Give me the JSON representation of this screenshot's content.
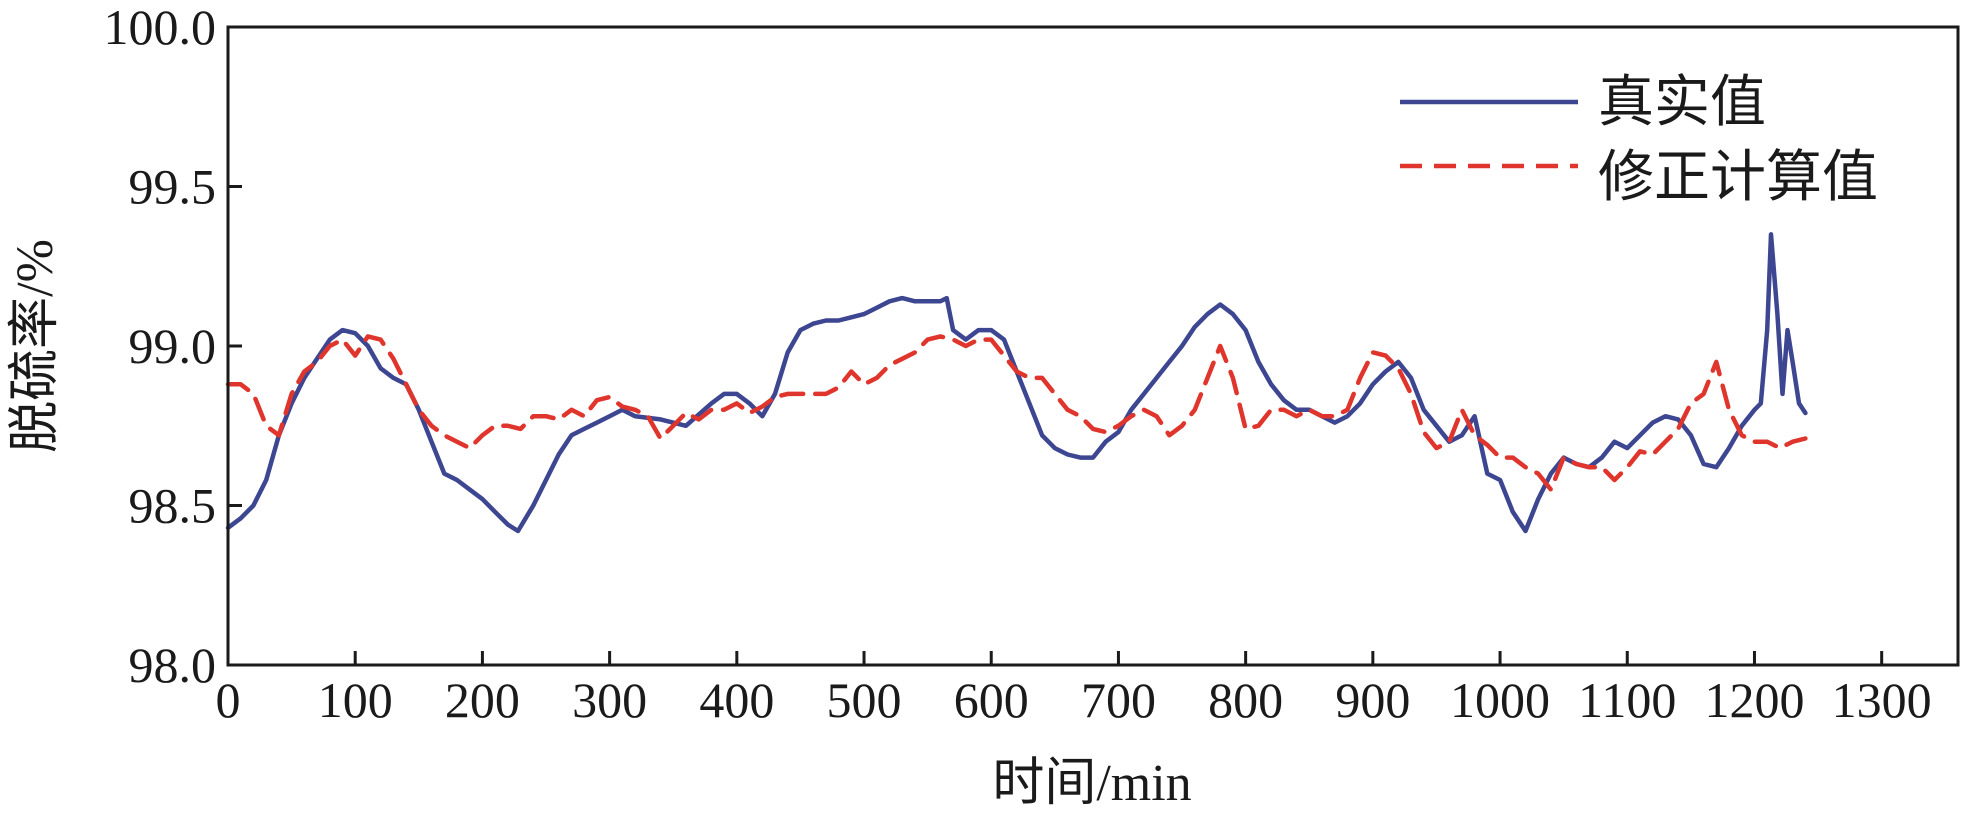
{
  "chart_data": {
    "type": "line",
    "title": "",
    "xlabel": "时间/min",
    "ylabel": "脱硫率/%",
    "xlim": [
      0,
      1360
    ],
    "ylim": [
      98.0,
      100.0
    ],
    "xticks": [
      0,
      100,
      200,
      300,
      400,
      500,
      600,
      700,
      800,
      900,
      1000,
      1100,
      1200,
      1300
    ],
    "xtick_labels": [
      "0",
      "100",
      "200",
      "300",
      "400",
      "500",
      "600",
      "700",
      "800",
      "900",
      "1000",
      "1100",
      "1200",
      "1300"
    ],
    "yticks": [
      98.0,
      98.5,
      99.0,
      99.5,
      100.0
    ],
    "ytick_labels": [
      "98.0",
      "98.5",
      "99.0",
      "99.5",
      "100.0"
    ],
    "grid": false,
    "legend_position": "top-right",
    "series": [
      {
        "name": "真实值",
        "style": "solid",
        "color": "#3d4691",
        "x": [
          0,
          10,
          20,
          30,
          40,
          50,
          60,
          70,
          80,
          90,
          100,
          110,
          120,
          130,
          140,
          150,
          160,
          170,
          180,
          190,
          200,
          210,
          220,
          228,
          240,
          250,
          260,
          270,
          280,
          290,
          300,
          310,
          320,
          340,
          360,
          380,
          390,
          400,
          410,
          420,
          430,
          440,
          450,
          460,
          470,
          480,
          490,
          500,
          510,
          520,
          530,
          540,
          550,
          560,
          565,
          570,
          580,
          590,
          600,
          610,
          620,
          630,
          640,
          650,
          660,
          670,
          680,
          690,
          700,
          710,
          720,
          730,
          740,
          750,
          760,
          770,
          780,
          790,
          800,
          810,
          820,
          830,
          840,
          850,
          860,
          870,
          880,
          890,
          900,
          910,
          920,
          930,
          940,
          950,
          960,
          970,
          980,
          990,
          1000,
          1010,
          1020,
          1030,
          1040,
          1050,
          1060,
          1070,
          1080,
          1090,
          1100,
          1110,
          1120,
          1130,
          1140,
          1150,
          1160,
          1170,
          1180,
          1190,
          1200,
          1205,
          1210,
          1213,
          1218,
          1222,
          1226,
          1230,
          1235,
          1240
        ],
        "y": [
          98.43,
          98.46,
          98.5,
          98.58,
          98.72,
          98.82,
          98.9,
          98.96,
          99.02,
          99.05,
          99.04,
          99.0,
          98.93,
          98.9,
          98.88,
          98.8,
          98.7,
          98.6,
          98.58,
          98.55,
          98.52,
          98.48,
          98.44,
          98.42,
          98.5,
          98.58,
          98.66,
          98.72,
          98.74,
          98.76,
          98.78,
          98.8,
          98.78,
          98.77,
          98.75,
          98.82,
          98.85,
          98.85,
          98.82,
          98.78,
          98.85,
          98.98,
          99.05,
          99.07,
          99.08,
          99.08,
          99.09,
          99.1,
          99.12,
          99.14,
          99.15,
          99.14,
          99.14,
          99.14,
          99.15,
          99.05,
          99.02,
          99.05,
          99.05,
          99.02,
          98.92,
          98.82,
          98.72,
          98.68,
          98.66,
          98.65,
          98.65,
          98.7,
          98.73,
          98.8,
          98.85,
          98.9,
          98.95,
          99.0,
          99.06,
          99.1,
          99.13,
          99.1,
          99.05,
          98.95,
          98.88,
          98.83,
          98.8,
          98.8,
          98.78,
          98.76,
          98.78,
          98.82,
          98.88,
          98.92,
          98.95,
          98.9,
          98.8,
          98.75,
          98.7,
          98.72,
          98.78,
          98.6,
          98.58,
          98.48,
          98.42,
          98.52,
          98.6,
          98.65,
          98.63,
          98.62,
          98.65,
          98.7,
          98.68,
          98.72,
          98.76,
          98.78,
          98.77,
          98.72,
          98.63,
          98.62,
          98.68,
          98.75,
          98.8,
          98.82,
          99.05,
          99.35,
          99.1,
          98.85,
          99.05,
          98.95,
          98.82,
          98.79
        ]
      },
      {
        "name": "修正计算值",
        "style": "dashed",
        "color": "#e0352c",
        "x": [
          0,
          10,
          20,
          30,
          40,
          50,
          60,
          70,
          80,
          90,
          100,
          110,
          120,
          130,
          140,
          150,
          160,
          170,
          180,
          190,
          200,
          210,
          220,
          230,
          240,
          250,
          260,
          270,
          280,
          290,
          300,
          310,
          320,
          330,
          340,
          350,
          360,
          370,
          380,
          390,
          400,
          410,
          420,
          430,
          440,
          450,
          460,
          470,
          480,
          490,
          500,
          510,
          520,
          530,
          540,
          550,
          560,
          570,
          580,
          590,
          600,
          610,
          620,
          630,
          640,
          650,
          660,
          670,
          680,
          690,
          700,
          710,
          720,
          730,
          740,
          750,
          760,
          770,
          780,
          790,
          800,
          810,
          820,
          830,
          840,
          850,
          860,
          870,
          880,
          890,
          900,
          910,
          920,
          930,
          940,
          950,
          960,
          970,
          980,
          990,
          1000,
          1010,
          1020,
          1030,
          1040,
          1050,
          1060,
          1070,
          1080,
          1090,
          1100,
          1110,
          1120,
          1130,
          1140,
          1150,
          1160,
          1170,
          1180,
          1190,
          1200,
          1210,
          1220,
          1230,
          1240
        ],
        "y": [
          98.88,
          98.88,
          98.85,
          98.75,
          98.72,
          98.85,
          98.92,
          98.95,
          99.0,
          99.02,
          98.97,
          99.03,
          99.02,
          98.96,
          98.88,
          98.8,
          98.75,
          98.72,
          98.7,
          98.68,
          98.72,
          98.75,
          98.75,
          98.74,
          98.78,
          98.78,
          98.77,
          98.8,
          98.78,
          98.83,
          98.84,
          98.81,
          98.8,
          98.78,
          98.71,
          98.75,
          98.79,
          98.77,
          98.8,
          98.8,
          98.82,
          98.79,
          98.81,
          98.84,
          98.85,
          98.85,
          98.85,
          98.85,
          98.87,
          98.92,
          98.88,
          98.9,
          98.94,
          98.96,
          98.98,
          99.02,
          99.03,
          99.02,
          99.0,
          99.02,
          99.02,
          98.97,
          98.92,
          98.9,
          98.9,
          98.85,
          98.8,
          98.78,
          98.74,
          98.73,
          98.75,
          98.78,
          98.8,
          98.78,
          98.72,
          98.75,
          98.8,
          98.9,
          99.0,
          98.9,
          98.74,
          98.75,
          98.8,
          98.8,
          98.78,
          98.8,
          98.78,
          98.78,
          98.8,
          98.9,
          98.98,
          98.97,
          98.93,
          98.85,
          98.73,
          98.68,
          98.7,
          98.8,
          98.72,
          98.69,
          98.65,
          98.65,
          98.62,
          98.6,
          98.55,
          98.65,
          98.63,
          98.62,
          98.62,
          98.58,
          98.62,
          98.67,
          98.66,
          98.7,
          98.74,
          98.82,
          98.85,
          98.95,
          98.8,
          98.72,
          98.7,
          98.7,
          98.68,
          98.7,
          98.71
        ]
      }
    ]
  }
}
